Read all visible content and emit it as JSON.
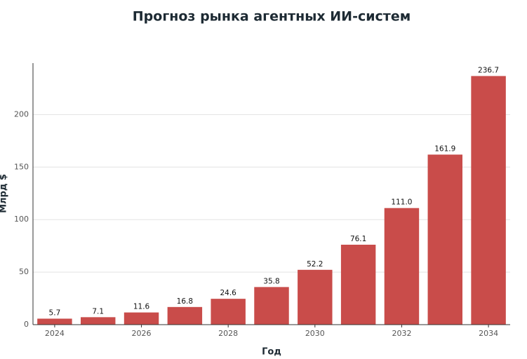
{
  "chart_data": {
    "type": "bar",
    "title": "Прогноз рынка агентных ИИ-систем",
    "x_label": "Год",
    "y_label": "Млрд $",
    "x": [
      2024,
      2025,
      2026,
      2027,
      2028,
      2029,
      2030,
      2031,
      2032,
      2033,
      2034
    ],
    "values": [
      5.7,
      7.1,
      11.6,
      16.8,
      24.6,
      35.8,
      52.2,
      76.1,
      111.0,
      161.9,
      236.7
    ],
    "value_labels": [
      "5.7",
      "7.1",
      "11.6",
      "16.8",
      "24.6",
      "35.8",
      "52.2",
      "76.1",
      "111.0",
      "161.9",
      "236.7"
    ],
    "color": "#c94c4a",
    "xlim": [
      2023.5,
      2034.5
    ],
    "xticks": [
      2024,
      2026,
      2028,
      2030,
      2032,
      2034
    ],
    "ylim": [
      0,
      249
    ],
    "yticks": [
      0,
      50,
      100,
      150,
      200
    ],
    "grid": true
  }
}
